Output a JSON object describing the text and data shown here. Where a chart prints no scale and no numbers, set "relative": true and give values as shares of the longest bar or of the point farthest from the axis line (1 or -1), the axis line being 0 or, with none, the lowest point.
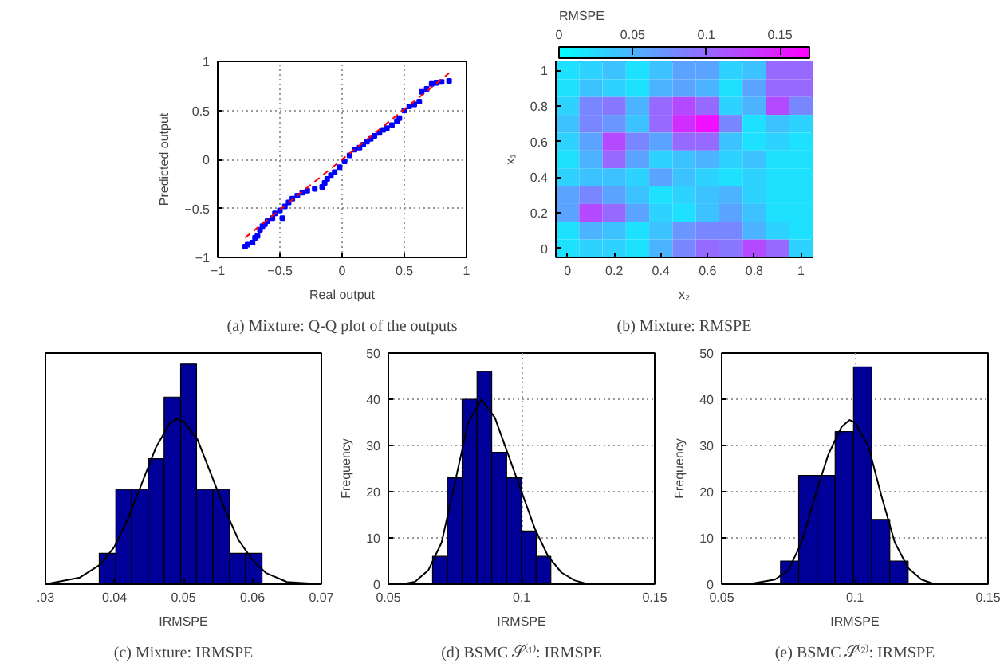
{
  "chart_data": [
    {
      "type": "scatter",
      "annotations": [
        "(a) Mixture: Q-Q plot of the outputs"
      ],
      "xlabel": "Real output",
      "ylabel": "Predicted output",
      "xlim": [
        -1,
        1
      ],
      "ylim": [
        -1,
        1
      ],
      "xticks": [
        {
          "value": -1,
          "label": "−1"
        },
        {
          "value": -0.5,
          "label": "−0.5"
        },
        0,
        0.5,
        1
      ],
      "yticks": [
        {
          "value": -1,
          "label": "−1"
        },
        {
          "value": -0.5,
          "label": "−0.5"
        },
        0,
        0.5,
        1
      ],
      "grid": true,
      "series": [
        {
          "type": "scatter",
          "color": "#0000ff",
          "marker": "square",
          "x": [
            -0.78,
            -0.76,
            -0.72,
            -0.7,
            -0.68,
            -0.66,
            -0.64,
            -0.62,
            -0.6,
            -0.56,
            -0.54,
            -0.5,
            -0.48,
            -0.46,
            -0.43,
            -0.4,
            -0.36,
            -0.32,
            -0.28,
            -0.22,
            -0.16,
            -0.14,
            -0.12,
            -0.09,
            -0.06,
            -0.02,
            0.02,
            0.06,
            0.1,
            0.14,
            0.17,
            0.2,
            0.23,
            0.26,
            0.3,
            0.33,
            0.36,
            0.4,
            0.44,
            0.46,
            0.5,
            0.54,
            0.58,
            0.62,
            0.64,
            0.68,
            0.72,
            0.76,
            0.8,
            0.86
          ],
          "values": [
            -0.89,
            -0.87,
            -0.85,
            -0.8,
            -0.78,
            -0.72,
            -0.68,
            -0.66,
            -0.63,
            -0.6,
            -0.55,
            -0.52,
            -0.6,
            -0.48,
            -0.44,
            -0.4,
            -0.37,
            -0.34,
            -0.32,
            -0.3,
            -0.28,
            -0.24,
            -0.2,
            -0.16,
            -0.13,
            -0.08,
            -0.02,
            0.04,
            0.1,
            0.12,
            0.15,
            0.18,
            0.21,
            0.24,
            0.27,
            0.3,
            0.32,
            0.35,
            0.39,
            0.42,
            0.5,
            0.54,
            0.56,
            0.59,
            0.69,
            0.72,
            0.77,
            0.78,
            0.79,
            0.8
          ]
        },
        {
          "type": "line",
          "color": "#ff0000",
          "line_style": "dashed",
          "x": [
            -0.78,
            0.86
          ],
          "values": [
            -0.8,
            0.88
          ]
        }
      ]
    },
    {
      "type": "heatmap",
      "annotations": [
        "(b) Mixture: RMSPE"
      ],
      "xlabel": "x₂",
      "ylabel": "x₁",
      "clabel": "RMSPE",
      "clim": [
        0,
        0.17
      ],
      "cticks": [
        0,
        0.05,
        0.1,
        0.15
      ],
      "categories": [
        "0",
        null,
        "0.2",
        null,
        "0.4",
        null,
        "0.6",
        null,
        "0.8",
        null,
        "1"
      ],
      "y_categories": [
        "1",
        null,
        "0.8",
        null,
        "0.6",
        null,
        "0.4",
        null,
        "0.2",
        null,
        "0"
      ],
      "cells": [
        [
          0.02,
          0.03,
          0.04,
          0.02,
          0.04,
          0.06,
          0.06,
          0.03,
          0.04,
          0.1,
          0.1
        ],
        [
          0.02,
          0.04,
          0.03,
          0.02,
          0.05,
          0.06,
          0.05,
          0.02,
          0.06,
          0.1,
          0.1
        ],
        [
          0.03,
          0.08,
          0.09,
          0.05,
          0.1,
          0.12,
          0.1,
          0.03,
          0.05,
          0.12,
          0.08
        ],
        [
          0.04,
          0.08,
          0.07,
          0.04,
          0.1,
          0.14,
          0.16,
          0.08,
          0.02,
          0.04,
          0.03
        ],
        [
          0.03,
          0.06,
          0.12,
          0.08,
          0.06,
          0.1,
          0.1,
          0.04,
          0.02,
          0.03,
          0.02
        ],
        [
          0.02,
          0.05,
          0.1,
          0.06,
          0.03,
          0.04,
          0.05,
          0.03,
          0.04,
          0.02,
          0.02
        ],
        [
          0.03,
          0.04,
          0.04,
          0.03,
          0.06,
          0.04,
          0.03,
          0.02,
          0.03,
          0.02,
          0.02
        ],
        [
          0.06,
          0.08,
          0.06,
          0.04,
          0.02,
          0.03,
          0.04,
          0.05,
          0.03,
          0.02,
          0.02
        ],
        [
          0.06,
          0.12,
          0.1,
          0.06,
          0.03,
          0.02,
          0.04,
          0.06,
          0.04,
          0.02,
          0.02
        ],
        [
          0.02,
          0.05,
          0.04,
          0.02,
          0.04,
          0.07,
          0.08,
          0.08,
          0.05,
          0.03,
          0.02
        ],
        [
          0.02,
          0.03,
          0.03,
          0.02,
          0.05,
          0.08,
          0.1,
          0.09,
          0.12,
          0.1,
          0.03
        ]
      ]
    },
    {
      "type": "histogram",
      "annotations": [
        "(c) Mixture: IRMSPE"
      ],
      "xlabel": "IRMSPE",
      "relative": true,
      "tick_labels": "x",
      "xlim": [
        0.03,
        0.07
      ],
      "xticks": [
        {
          "value": 0.03,
          "label": ".03"
        },
        0.04,
        0.05,
        0.06,
        0.07
      ],
      "color": "#000099",
      "bins": [
        0.0378,
        0.0402,
        0.0425,
        0.0449,
        0.0472,
        0.0496,
        0.0519,
        0.0543,
        0.0567,
        0.059,
        0.0614
      ],
      "values": [
        0.14,
        0.43,
        0.43,
        0.57,
        0.85,
        1,
        0.43,
        0.43,
        0.14,
        0.14
      ],
      "series": [
        {
          "type": "line",
          "color": "#000000",
          "x": [
            0.03,
            0.035,
            0.038,
            0.04,
            0.042,
            0.044,
            0.046,
            0.048,
            0.049,
            0.05,
            0.052,
            0.054,
            0.056,
            0.058,
            0.06,
            0.062,
            0.065,
            0.07
          ],
          "values": [
            0.0,
            0.03,
            0.09,
            0.17,
            0.3,
            0.46,
            0.62,
            0.73,
            0.75,
            0.74,
            0.66,
            0.5,
            0.34,
            0.2,
            0.11,
            0.05,
            0.01,
            0.0
          ]
        }
      ]
    },
    {
      "type": "histogram",
      "annotations": [
        "(d) BSMC 𝒮⁽¹⁾: IRMSPE"
      ],
      "xlabel": "IRMSPE",
      "ylabel": "Frequency",
      "xlim": [
        0.05,
        0.15
      ],
      "xticks": [
        0.05,
        0.1,
        0.15
      ],
      "ylim": [
        0,
        50
      ],
      "yticks": [
        0,
        10,
        20,
        30,
        40,
        50
      ],
      "grid": true,
      "color": "#000099",
      "bins": [
        0.0666,
        0.0722,
        0.0777,
        0.0833,
        0.0888,
        0.0944,
        0.1,
        0.1055,
        0.111
      ],
      "values": [
        6,
        23,
        40,
        46,
        28.5,
        23,
        11.5,
        6
      ],
      "series": [
        {
          "type": "line",
          "color": "#000000",
          "x": [
            0.055,
            0.06,
            0.065,
            0.07,
            0.075,
            0.08,
            0.085,
            0.09,
            0.095,
            0.1,
            0.105,
            0.11,
            0.115,
            0.12,
            0.125
          ],
          "values": [
            0,
            0.5,
            3,
            9,
            22,
            35,
            40,
            36,
            28,
            20,
            12,
            6,
            2.5,
            0.8,
            0
          ]
        }
      ]
    },
    {
      "type": "histogram",
      "annotations": [
        "(e) BSMC 𝒮⁽²⁾: IRMSPE"
      ],
      "xlabel": "IRMSPE",
      "ylabel": "Frequency",
      "xlim": [
        0.05,
        0.15
      ],
      "xticks": [
        0.05,
        0.1,
        0.15
      ],
      "ylim": [
        0,
        50
      ],
      "yticks": [
        0,
        10,
        20,
        30,
        40,
        50
      ],
      "grid": true,
      "color": "#000099",
      "bins": [
        0.0721,
        0.0789,
        0.0858,
        0.0926,
        0.0995,
        0.1063,
        0.1131,
        0.12
      ],
      "values": [
        5,
        23.5,
        23.5,
        33,
        47,
        14,
        5
      ],
      "series": [
        {
          "type": "line",
          "color": "#000000",
          "x": [
            0.06,
            0.07,
            0.075,
            0.08,
            0.085,
            0.09,
            0.095,
            0.098,
            0.1,
            0.105,
            0.11,
            0.115,
            0.12,
            0.125,
            0.13
          ],
          "values": [
            0,
            1,
            3,
            9,
            19,
            28,
            34,
            35.5,
            35,
            30,
            19,
            9,
            3.5,
            1,
            0
          ]
        }
      ]
    }
  ]
}
